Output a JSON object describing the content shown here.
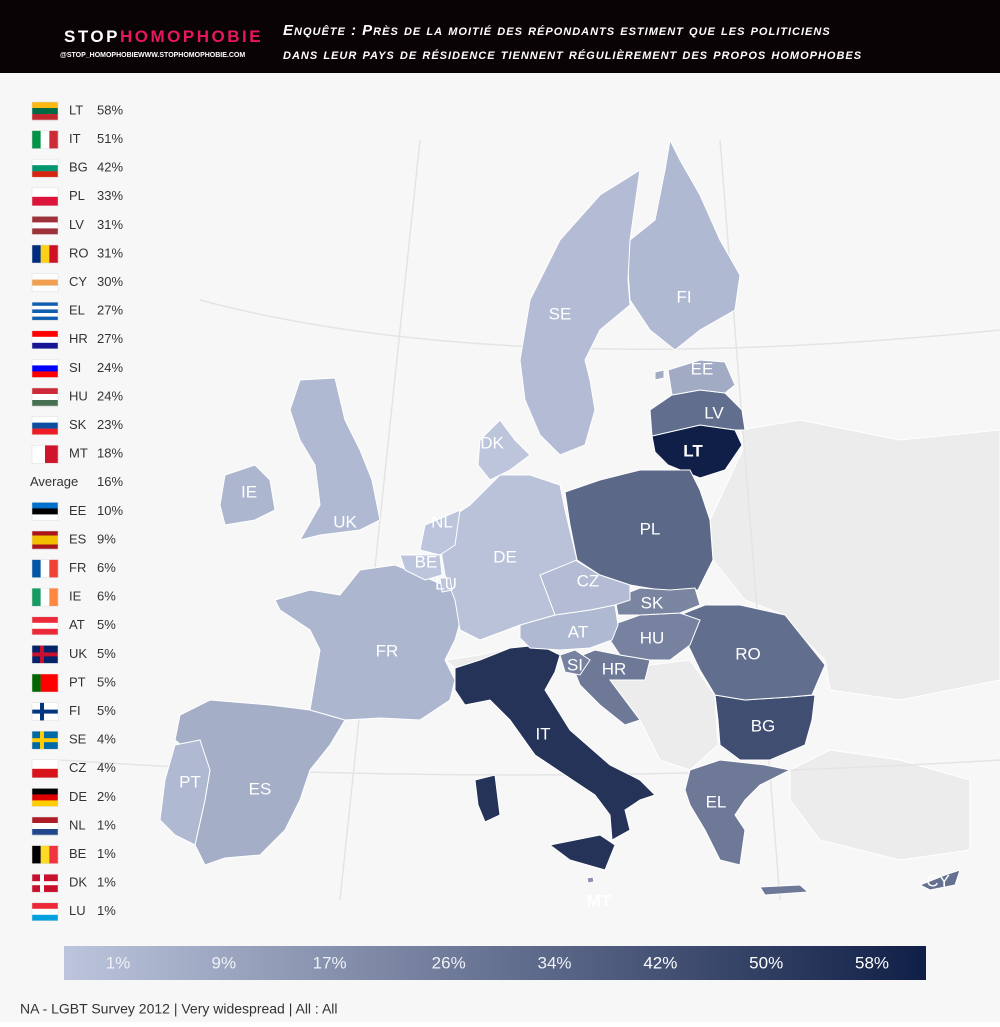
{
  "header": {
    "brand": {
      "stop": "STOP",
      "homophobie": "HOMOPHOBIE"
    },
    "handle": "@STOP_HOMOPHOBIE",
    "website": "WWW.STOPHOMOPHOBIE.COM",
    "title_lines": [
      "Enquête : Près de la moitié des répondants estiment que les politiciens",
      "dans leur pays de résidence tiennent régulièrement des propos homophobes"
    ]
  },
  "chart_data": {
    "type": "choropleth",
    "categories": [
      "LT",
      "IT",
      "BG",
      "PL",
      "LV",
      "RO",
      "CY",
      "EL",
      "HR",
      "SI",
      "HU",
      "SK",
      "MT",
      "EE",
      "ES",
      "FR",
      "IE",
      "AT",
      "UK",
      "PT",
      "FI",
      "SE",
      "CZ",
      "DE",
      "NL",
      "BE",
      "DK",
      "LU"
    ],
    "values": [
      58,
      51,
      42,
      33,
      31,
      31,
      30,
      27,
      27,
      24,
      24,
      23,
      18,
      10,
      9,
      6,
      6,
      5,
      5,
      5,
      5,
      4,
      4,
      2,
      1,
      1,
      1,
      1
    ],
    "value_labels": [
      "58%",
      "51%",
      "42%",
      "33%",
      "31%",
      "31%",
      "30%",
      "27%",
      "27%",
      "24%",
      "24%",
      "23%",
      "18%",
      "10%",
      "9%",
      "6%",
      "6%",
      "5%",
      "5%",
      "5%",
      "5%",
      "4%",
      "4%",
      "2%",
      "1%",
      "1%",
      "1%",
      "1%"
    ],
    "average": {
      "label": "Average",
      "value": 16,
      "value_label": "16%"
    },
    "colorscale": {
      "range": [
        1,
        58
      ],
      "colors": [
        "#bcc5dc",
        "#101f47"
      ],
      "ticks": [
        {
          "value": 1,
          "label": "1%"
        },
        {
          "value": 9,
          "label": "9%"
        },
        {
          "value": 17,
          "label": "17%"
        },
        {
          "value": 26,
          "label": "26%"
        },
        {
          "value": 34,
          "label": "34%"
        },
        {
          "value": 42,
          "label": "42%"
        },
        {
          "value": 50,
          "label": "50%"
        },
        {
          "value": 58,
          "label": "58%"
        }
      ]
    },
    "footer": "NA - LGBT Survey 2012 | Very widespread | All : All"
  }
}
